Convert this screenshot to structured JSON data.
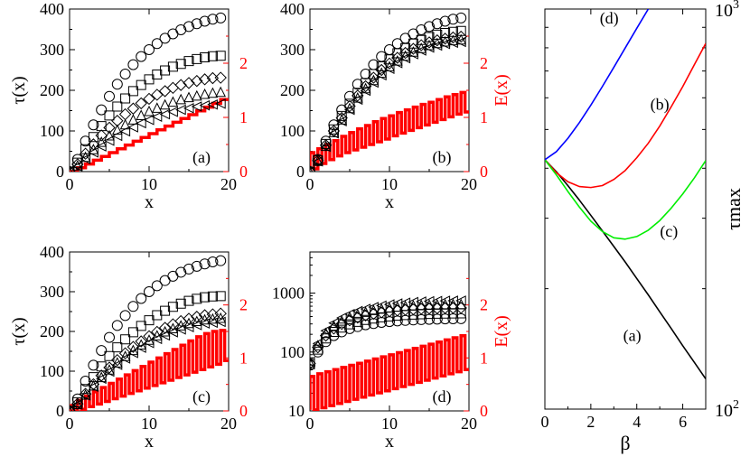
{
  "chart_data": [
    {
      "type": "scatter",
      "panel": "(a)",
      "title": "",
      "xlabel": "x",
      "ylabel": "τ(x)",
      "y2label": "",
      "xlim": [
        0,
        20
      ],
      "ylim": [
        0,
        400
      ],
      "y2lim": [
        0,
        3
      ],
      "x_ticks": [
        "0",
        "10",
        "20"
      ],
      "y_ticks": [
        "0",
        "100",
        "200",
        "300",
        "400"
      ],
      "y2_ticks": [
        "0",
        "1",
        "2"
      ],
      "y2_color": "#ff0000",
      "series_x": [
        0,
        1,
        2,
        3,
        4,
        5,
        6,
        7,
        8,
        9,
        10,
        11,
        12,
        13,
        14,
        15,
        16,
        17,
        18,
        19
      ],
      "series": [
        {
          "marker": "circle",
          "values": [
            0,
            30,
            75,
            115,
            152,
            185,
            215,
            240,
            263,
            283,
            300,
            315,
            328,
            339,
            349,
            357,
            364,
            370,
            375,
            378
          ]
        },
        {
          "marker": "square",
          "values": [
            0,
            22,
            55,
            85,
            112,
            138,
            160,
            180,
            198,
            213,
            227,
            239,
            249,
            258,
            265,
            272,
            277,
            281,
            284,
            285
          ]
        },
        {
          "marker": "diamond",
          "values": [
            0,
            18,
            44,
            67,
            89,
            108,
            125,
            141,
            155,
            168,
            179,
            189,
            198,
            206,
            213,
            218,
            223,
            227,
            230,
            231
          ]
        },
        {
          "marker": "triangle",
          "values": [
            0,
            15,
            36,
            55,
            73,
            89,
            103,
            116,
            128,
            139,
            149,
            157,
            165,
            172,
            178,
            183,
            187,
            191,
            194,
            196
          ]
        },
        {
          "marker": "tri-left",
          "values": [
            0,
            13,
            31,
            47,
            62,
            76,
            88,
            99,
            109,
            119,
            127,
            135,
            141,
            147,
            152,
            156,
            160,
            163,
            165,
            167
          ]
        }
      ],
      "energy": {
        "color": "#ff0000",
        "x": [
          0,
          1,
          2,
          3,
          4,
          5,
          6,
          7,
          8,
          9,
          10,
          11,
          12,
          13,
          14,
          15,
          16,
          17,
          18,
          19
        ],
        "values": [
          0,
          0.07,
          0.14,
          0.21,
          0.28,
          0.35,
          0.42,
          0.49,
          0.56,
          0.63,
          0.7,
          0.77,
          0.84,
          0.91,
          0.98,
          1.05,
          1.12,
          1.19,
          1.26,
          1.33
        ],
        "profile": "staircase"
      }
    },
    {
      "type": "scatter",
      "panel": "(b)",
      "title": "",
      "xlabel": "x",
      "ylabel": "",
      "y2label": "E(x)",
      "xlim": [
        0,
        20
      ],
      "ylim": [
        0,
        400
      ],
      "y2lim": [
        0,
        3
      ],
      "x_ticks": [
        "0",
        "10",
        "20"
      ],
      "y_ticks": [
        "0",
        "100",
        "200",
        "300",
        "400"
      ],
      "y2_ticks": [
        "0",
        "1",
        "2"
      ],
      "y2_color": "#ff0000",
      "series_x": [
        0,
        1,
        2,
        3,
        4,
        5,
        6,
        7,
        8,
        9,
        10,
        11,
        12,
        13,
        14,
        15,
        16,
        17,
        18,
        19
      ],
      "series": [
        {
          "marker": "circle",
          "values": [
            0,
            30,
            75,
            115,
            152,
            185,
            215,
            240,
            263,
            283,
            300,
            315,
            328,
            339,
            349,
            357,
            364,
            370,
            375,
            378
          ]
        },
        {
          "marker": "square",
          "values": [
            0,
            28,
            68,
            104,
            137,
            167,
            194,
            218,
            240,
            259,
            276,
            291,
            304,
            315,
            324,
            331,
            337,
            341,
            344,
            346
          ]
        },
        {
          "marker": "diamond",
          "values": [
            0,
            27,
            65,
            100,
            132,
            161,
            187,
            210,
            231,
            250,
            266,
            280,
            292,
            302,
            311,
            318,
            323,
            327,
            330,
            332
          ]
        },
        {
          "marker": "triangle",
          "values": [
            0,
            26,
            63,
            97,
            128,
            156,
            182,
            205,
            225,
            243,
            259,
            273,
            285,
            295,
            304,
            311,
            316,
            320,
            323,
            325
          ]
        },
        {
          "marker": "tri-left",
          "values": [
            0,
            25,
            61,
            94,
            124,
            152,
            177,
            199,
            219,
            237,
            253,
            267,
            279,
            289,
            298,
            305,
            310,
            314,
            317,
            319
          ]
        }
      ],
      "energy": {
        "color": "#ff0000",
        "x": [
          0,
          1,
          2,
          3,
          4,
          5,
          6,
          7,
          8,
          9,
          10,
          11,
          12,
          13,
          14,
          15,
          16,
          17,
          18,
          19
        ],
        "low": [
          0.05,
          0.15,
          0.22,
          0.29,
          0.35,
          0.4,
          0.45,
          0.5,
          0.55,
          0.6,
          0.66,
          0.71,
          0.76,
          0.81,
          0.86,
          0.91,
          0.96,
          1.01,
          1.06,
          1.1
        ],
        "high": [
          0.35,
          0.42,
          0.5,
          0.57,
          0.65,
          0.72,
          0.79,
          0.85,
          0.92,
          0.98,
          1.03,
          1.09,
          1.14,
          1.19,
          1.24,
          1.28,
          1.33,
          1.38,
          1.42,
          1.46
        ],
        "profile": "square-wave"
      }
    },
    {
      "type": "scatter",
      "panel": "(c)",
      "title": "",
      "xlabel": "x",
      "ylabel": "τ(x)",
      "y2label": "",
      "xlim": [
        0,
        20
      ],
      "ylim": [
        0,
        400
      ],
      "y2lim": [
        0,
        3
      ],
      "x_ticks": [
        "0",
        "10",
        "20"
      ],
      "y_ticks": [
        "0",
        "100",
        "200",
        "300",
        "400"
      ],
      "y2_ticks": [
        "0",
        "1",
        "2"
      ],
      "y2_color": "#ff0000",
      "series_x": [
        0,
        1,
        2,
        3,
        4,
        5,
        6,
        7,
        8,
        9,
        10,
        11,
        12,
        13,
        14,
        15,
        16,
        17,
        18,
        19
      ],
      "series": [
        {
          "marker": "circle",
          "values": [
            0,
            30,
            75,
            115,
            152,
            185,
            215,
            240,
            263,
            283,
            300,
            315,
            328,
            339,
            349,
            357,
            364,
            370,
            375,
            378
          ]
        },
        {
          "marker": "square",
          "values": [
            0,
            22,
            55,
            85,
            112,
            138,
            160,
            180,
            198,
            214,
            228,
            241,
            252,
            262,
            270,
            277,
            282,
            286,
            288,
            289
          ]
        },
        {
          "marker": "diamond",
          "values": [
            0,
            18,
            43,
            67,
            89,
            109,
            128,
            145,
            161,
            175,
            188,
            199,
            209,
            218,
            226,
            232,
            237,
            241,
            243,
            245
          ]
        },
        {
          "marker": "triangle",
          "values": [
            0,
            17,
            41,
            64,
            85,
            104,
            122,
            138,
            153,
            167,
            179,
            190,
            200,
            208,
            215,
            221,
            226,
            230,
            232,
            234
          ]
        },
        {
          "marker": "tri-left",
          "values": [
            0,
            16,
            39,
            61,
            81,
            99,
            116,
            132,
            146,
            159,
            171,
            181,
            190,
            198,
            205,
            211,
            216,
            220,
            222,
            224
          ]
        }
      ],
      "energy": {
        "color": "#ff0000",
        "x": [
          0,
          1,
          2,
          3,
          4,
          5,
          6,
          7,
          8,
          9,
          10,
          11,
          12,
          13,
          14,
          15,
          16,
          17,
          18,
          19
        ],
        "low": [
          0,
          0.03,
          0.08,
          0.13,
          0.18,
          0.23,
          0.28,
          0.33,
          0.38,
          0.43,
          0.48,
          0.53,
          0.58,
          0.63,
          0.68,
          0.73,
          0.78,
          0.83,
          0.88,
          0.95
        ],
        "high": [
          0.1,
          0.2,
          0.28,
          0.36,
          0.44,
          0.52,
          0.6,
          0.68,
          0.76,
          0.84,
          0.92,
          1.0,
          1.08,
          1.16,
          1.24,
          1.32,
          1.4,
          1.46,
          1.5,
          1.52
        ],
        "profile": "square-wave"
      }
    },
    {
      "type": "scatter",
      "panel": "(d)",
      "title": "",
      "xlabel": "x",
      "ylabel": "",
      "y2label": "E(x)",
      "xlim": [
        0,
        20
      ],
      "ylim": [
        10,
        5000
      ],
      "yscale": "log",
      "y2lim": [
        0,
        3
      ],
      "x_ticks": [
        "0",
        "10",
        "20"
      ],
      "y_ticks": [
        "10",
        "100",
        "1000"
      ],
      "y2_ticks": [
        "0",
        "1",
        "2"
      ],
      "y2_color": "#ff0000",
      "series_x": [
        0,
        1,
        2,
        3,
        4,
        5,
        6,
        7,
        8,
        9,
        10,
        11,
        12,
        13,
        14,
        15,
        16,
        17,
        18,
        19
      ],
      "series": [
        {
          "marker": "circle",
          "values": [
            60,
            100,
            150,
            190,
            220,
            250,
            270,
            290,
            305,
            318,
            328,
            337,
            344,
            350,
            355,
            359,
            362,
            365,
            367,
            368
          ]
        },
        {
          "marker": "square",
          "values": [
            62,
            110,
            170,
            220,
            260,
            295,
            325,
            350,
            370,
            388,
            402,
            414,
            424,
            432,
            438,
            443,
            447,
            450,
            452,
            453
          ]
        },
        {
          "marker": "diamond",
          "values": [
            64,
            120,
            190,
            250,
            300,
            345,
            385,
            418,
            446,
            470,
            490,
            507,
            521,
            532,
            541,
            548,
            553,
            557,
            560,
            561
          ]
        },
        {
          "marker": "triangle",
          "values": [
            66,
            130,
            210,
            280,
            340,
            395,
            440,
            480,
            514,
            543,
            567,
            588,
            605,
            619,
            630,
            638,
            644,
            648,
            651,
            652
          ]
        },
        {
          "marker": "tri-left",
          "values": [
            68,
            140,
            230,
            310,
            380,
            440,
            495,
            540,
            580,
            614,
            643,
            668,
            688,
            705,
            718,
            728,
            735,
            740,
            743,
            744
          ]
        }
      ],
      "energy": {
        "color": "#ff0000",
        "x": [
          0,
          1,
          2,
          3,
          4,
          5,
          6,
          7,
          8,
          9,
          10,
          11,
          12,
          13,
          14,
          15,
          16,
          17,
          18,
          19
        ],
        "low": [
          0.02,
          0.06,
          0.1,
          0.14,
          0.18,
          0.22,
          0.26,
          0.3,
          0.34,
          0.38,
          0.42,
          0.46,
          0.5,
          0.54,
          0.58,
          0.62,
          0.66,
          0.7,
          0.74,
          0.78
        ],
        "high": [
          0.65,
          0.7,
          0.74,
          0.78,
          0.82,
          0.86,
          0.9,
          0.94,
          0.98,
          1.02,
          1.06,
          1.1,
          1.14,
          1.18,
          1.22,
          1.26,
          1.3,
          1.34,
          1.38,
          1.42
        ],
        "profile": "square-wave"
      }
    },
    {
      "type": "line",
      "title": "",
      "xlabel": "β",
      "ylabel": "τmax",
      "xlim": [
        0,
        7
      ],
      "ylim": [
        100,
        1000
      ],
      "yscale": "log",
      "x_ticks": [
        "0",
        "2",
        "4",
        "6"
      ],
      "y_tick_labels": [
        {
          "value": 1000,
          "base": "10",
          "exp": "3"
        },
        {
          "value": 100,
          "base": "10",
          "exp": "2"
        }
      ],
      "series": [
        {
          "label": "(a)",
          "color": "#000000",
          "x": [
            0,
            0.5,
            1,
            1.5,
            2,
            2.5,
            3,
            3.5,
            4,
            4.5,
            5,
            5.5,
            6,
            6.5,
            7
          ],
          "values": [
            420,
            392,
            362,
            333,
            305,
            279,
            255,
            233,
            212,
            193,
            175,
            159,
            144,
            131,
            119
          ],
          "label_at": [
            3.8,
            148
          ]
        },
        {
          "label": "(b)",
          "color": "#ff0000",
          "x": [
            0,
            0.5,
            1,
            1.5,
            2,
            2.5,
            3,
            3.5,
            4,
            4.5,
            5,
            5.5,
            6,
            6.5,
            7
          ],
          "values": [
            420,
            390,
            370,
            360,
            358,
            362,
            375,
            395,
            425,
            462,
            510,
            570,
            640,
            725,
            820
          ],
          "label_at": [
            5.0,
            560
          ]
        },
        {
          "label": "(c)",
          "color": "#00ee00",
          "x": [
            0,
            0.5,
            1,
            1.5,
            2,
            2.5,
            3,
            3.5,
            4,
            4.5,
            5,
            5.5,
            6,
            6.5,
            7
          ],
          "values": [
            420,
            385,
            350,
            320,
            295,
            278,
            268,
            266,
            270,
            280,
            296,
            318,
            345,
            378,
            418
          ],
          "label_at": [
            5.4,
            270
          ]
        },
        {
          "label": "(d)",
          "color": "#0000ff",
          "x": [
            0,
            0.5,
            1,
            1.5,
            2,
            2.5,
            3,
            3.5,
            4,
            4.5,
            5
          ],
          "values": [
            420,
            440,
            475,
            520,
            575,
            640,
            715,
            800,
            895,
            1000,
            1120
          ],
          "label_at": [
            2.8,
            920
          ]
        }
      ]
    }
  ]
}
